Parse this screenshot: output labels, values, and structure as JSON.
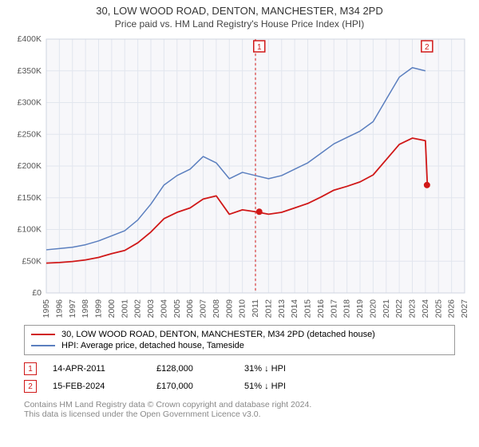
{
  "header": {
    "title": "30, LOW WOOD ROAD, DENTON, MANCHESTER, M34 2PD",
    "subtitle": "Price paid vs. HM Land Registry's House Price Index (HPI)"
  },
  "chart": {
    "type": "line",
    "background_color": "#ffffff",
    "plot_background_color": "#f7f7fa",
    "plot_border_color": "#cfd4e0",
    "grid_color": "#e2e6ee",
    "label_color": "#555555",
    "label_fontsize": 10.5,
    "ylim": [
      0,
      400000
    ],
    "ytick_step": 50000,
    "yticks": [
      "£0",
      "£50K",
      "£100K",
      "£150K",
      "£200K",
      "£250K",
      "£300K",
      "£350K",
      "£400K"
    ],
    "x_years": [
      1995,
      1996,
      1997,
      1998,
      1999,
      2000,
      2001,
      2002,
      2003,
      2004,
      2005,
      2006,
      2007,
      2008,
      2009,
      2010,
      2011,
      2012,
      2013,
      2014,
      2015,
      2016,
      2017,
      2018,
      2019,
      2020,
      2021,
      2022,
      2023,
      2024,
      2025,
      2026,
      2027
    ],
    "now_line_year": 2011,
    "now_line_color": "#d01818",
    "now_line_dash": "3,3",
    "series": [
      {
        "name": "hpi",
        "label": "HPI: Average price, detached house, Tameside",
        "color": "#5b7fbf",
        "width": 1.5,
        "points": [
          [
            1995,
            68000
          ],
          [
            1996,
            70000
          ],
          [
            1997,
            72000
          ],
          [
            1998,
            76000
          ],
          [
            1999,
            82000
          ],
          [
            2000,
            90000
          ],
          [
            2001,
            98000
          ],
          [
            2002,
            115000
          ],
          [
            2003,
            140000
          ],
          [
            2004,
            170000
          ],
          [
            2005,
            185000
          ],
          [
            2006,
            195000
          ],
          [
            2007,
            215000
          ],
          [
            2008,
            205000
          ],
          [
            2009,
            180000
          ],
          [
            2010,
            190000
          ],
          [
            2011,
            185000
          ],
          [
            2012,
            180000
          ],
          [
            2013,
            185000
          ],
          [
            2014,
            195000
          ],
          [
            2015,
            205000
          ],
          [
            2016,
            220000
          ],
          [
            2017,
            235000
          ],
          [
            2018,
            245000
          ],
          [
            2019,
            255000
          ],
          [
            2020,
            270000
          ],
          [
            2021,
            305000
          ],
          [
            2022,
            340000
          ],
          [
            2023,
            355000
          ],
          [
            2024,
            350000
          ]
        ]
      },
      {
        "name": "price_paid",
        "label": "30, LOW WOOD ROAD, DENTON, MANCHESTER, M34 2PD (detached house)",
        "color": "#d01818",
        "width": 1.8,
        "points": [
          [
            1995,
            47000
          ],
          [
            1996,
            48000
          ],
          [
            1997,
            49500
          ],
          [
            1998,
            52000
          ],
          [
            1999,
            56000
          ],
          [
            2000,
            62000
          ],
          [
            2001,
            67000
          ],
          [
            2002,
            79000
          ],
          [
            2003,
            96000
          ],
          [
            2004,
            117000
          ],
          [
            2005,
            127000
          ],
          [
            2006,
            134000
          ],
          [
            2007,
            148000
          ],
          [
            2008,
            153000
          ],
          [
            2009,
            124000
          ],
          [
            2010,
            131000
          ],
          [
            2011,
            128000
          ],
          [
            2012,
            124000
          ],
          [
            2013,
            127000
          ],
          [
            2014,
            134000
          ],
          [
            2015,
            141000
          ],
          [
            2016,
            151000
          ],
          [
            2017,
            162000
          ],
          [
            2018,
            168000
          ],
          [
            2019,
            175000
          ],
          [
            2020,
            186000
          ],
          [
            2021,
            210000
          ],
          [
            2022,
            234000
          ],
          [
            2023,
            244000
          ],
          [
            2024,
            240000
          ],
          [
            2024.15,
            170000
          ]
        ]
      }
    ],
    "marker_dots": [
      {
        "year": 2011.29,
        "value": 128000,
        "color": "#d01818"
      },
      {
        "year": 2024.12,
        "value": 170000,
        "color": "#d01818"
      }
    ],
    "marker_badges": [
      {
        "n": "1",
        "year": 2011.29,
        "color": "#d01818"
      },
      {
        "n": "2",
        "year": 2024.12,
        "color": "#d01818"
      }
    ]
  },
  "legend": {
    "rows": [
      {
        "color": "#d01818",
        "label": "30, LOW WOOD ROAD, DENTON, MANCHESTER, M34 2PD (detached house)"
      },
      {
        "color": "#5b7fbf",
        "label": "HPI: Average price, detached house, Tameside"
      }
    ]
  },
  "markers": [
    {
      "n": "1",
      "color": "#d01818",
      "date": "14-APR-2011",
      "price": "£128,000",
      "delta": "31% ↓ HPI"
    },
    {
      "n": "2",
      "color": "#d01818",
      "date": "15-FEB-2024",
      "price": "£170,000",
      "delta": "51% ↓ HPI"
    }
  ],
  "footer": {
    "line1": "Contains HM Land Registry data © Crown copyright and database right 2024.",
    "line2": "This data is licensed under the Open Government Licence v3.0."
  }
}
